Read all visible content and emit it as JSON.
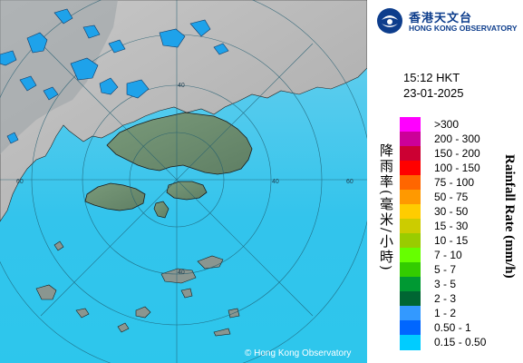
{
  "header": {
    "org_name_cn": "香港天文台",
    "org_name_en": "HONG KONG OBSERVATORY"
  },
  "timestamp": {
    "time": "15:12 HKT",
    "date": "23-01-2025"
  },
  "legend": {
    "title_cn": "降雨率(毫米/小時)",
    "title_en": "Rainfall Rate (mm/h)",
    "items": [
      {
        "label": ">300",
        "color": "#ff00ff"
      },
      {
        "label": "200 - 300",
        "color": "#cc0099"
      },
      {
        "label": "150 - 200",
        "color": "#cc0033"
      },
      {
        "label": "100 - 150",
        "color": "#ff0000"
      },
      {
        "label": "75 - 100",
        "color": "#ff6600"
      },
      {
        "label": "50 - 75",
        "color": "#ff9900"
      },
      {
        "label": "30 - 50",
        "color": "#ffcc00"
      },
      {
        "label": "15 - 30",
        "color": "#cccc00"
      },
      {
        "label": "10 - 15",
        "color": "#99cc00"
      },
      {
        "label": "7 - 10",
        "color": "#66ff00"
      },
      {
        "label": "5 - 7",
        "color": "#33cc00"
      },
      {
        "label": "3 - 5",
        "color": "#009933"
      },
      {
        "label": "2 - 3",
        "color": "#006633"
      },
      {
        "label": "1 - 2",
        "color": "#3399ff"
      },
      {
        "label": "0.50 - 1",
        "color": "#0066ff"
      },
      {
        "label": "0.15 - 0.50",
        "color": "#00ccff"
      }
    ]
  },
  "map": {
    "copyright": "© Hong Kong Observatory",
    "range_ring_labels": [
      "60",
      "60",
      "40",
      "40",
      "40"
    ],
    "sea_color": "#3cc3ea",
    "rain_color": "#1ea2ea"
  }
}
